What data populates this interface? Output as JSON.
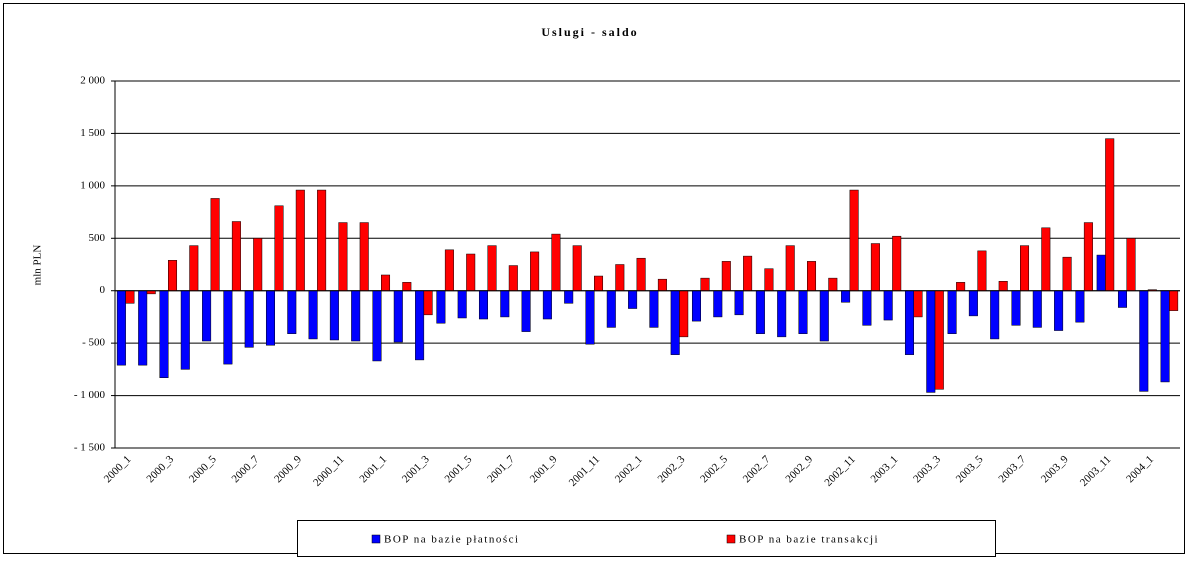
{
  "chart_data": {
    "type": "bar",
    "title": "Uslugi - saldo",
    "y_label": "mln PLN",
    "categories": [
      "2000_1",
      null,
      "2000_3",
      null,
      "2000_5",
      null,
      "2000_7",
      null,
      "2000_9",
      null,
      "2000_11",
      null,
      "2001_1",
      null,
      "2001_3",
      null,
      "2001_5",
      null,
      "2001_7",
      null,
      "2001_9",
      null,
      "2001_11",
      null,
      "2002_1",
      null,
      "2002_3",
      null,
      "2002_5",
      null,
      "2002_7",
      null,
      "2002_9",
      null,
      "2002_11",
      null,
      "2003_1",
      null,
      "2003_3",
      null,
      "2003_5",
      null,
      "2003_7",
      null,
      "2003_9",
      null,
      "2003_11",
      null,
      "2004_1",
      null
    ],
    "series": [
      {
        "name": "BOP na bazie płatności",
        "color": "#0000ff",
        "values": [
          -710,
          -710,
          -830,
          -750,
          -480,
          -700,
          -540,
          -520,
          -410,
          -460,
          -470,
          -480,
          -670,
          -490,
          -660,
          -310,
          -260,
          -270,
          -250,
          -390,
          -270,
          -120,
          -510,
          -350,
          -170,
          -350,
          -610,
          -290,
          -250,
          -230,
          -410,
          -440,
          -410,
          -480,
          -110,
          -330,
          -280,
          -610,
          -970,
          -410,
          -240,
          -460,
          -330,
          -350,
          -380,
          -300,
          340,
          -160,
          -960,
          -870
        ]
      },
      {
        "name": "BOP na bazie transakcji",
        "color": "#ff0000",
        "values": [
          -120,
          -30,
          290,
          430,
          880,
          660,
          500,
          810,
          960,
          960,
          650,
          650,
          150,
          80,
          -230,
          390,
          350,
          430,
          240,
          370,
          540,
          430,
          140,
          250,
          310,
          110,
          -440,
          120,
          280,
          330,
          210,
          430,
          280,
          120,
          960,
          450,
          520,
          -250,
          -940,
          80,
          380,
          90,
          430,
          600,
          320,
          650,
          1450,
          500,
          10,
          -190
        ]
      }
    ],
    "ylim": [
      -1500,
      2000
    ],
    "yticks": [
      {
        "value": -1500,
        "label": "- 1 500"
      },
      {
        "value": -1000,
        "label": "- 1 000"
      },
      {
        "value": -500,
        "label": "- 500"
      },
      0,
      500,
      {
        "value": 1000,
        "label": "1 000"
      },
      {
        "value": 1500,
        "label": "1 500"
      },
      {
        "value": 2000,
        "label": "2 000"
      }
    ],
    "grid": true
  }
}
